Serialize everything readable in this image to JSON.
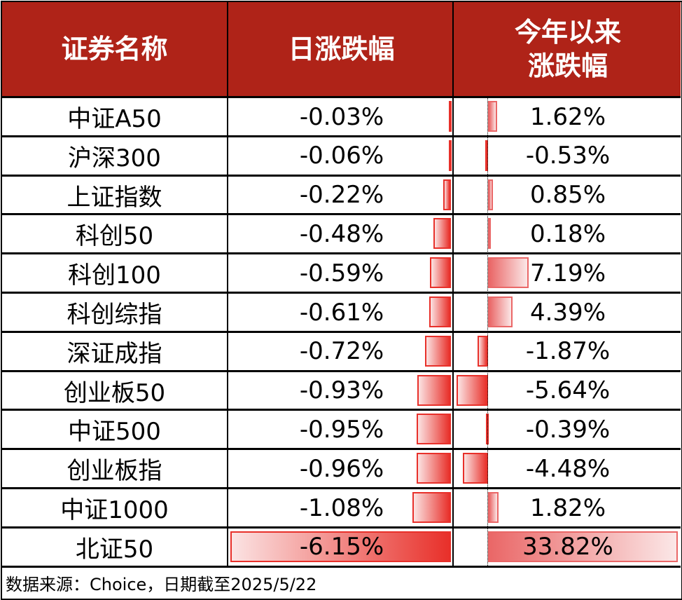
{
  "header": {
    "col1": "证券名称",
    "col2": "日涨跌幅",
    "col3_line1": "今年以来",
    "col3_line2": "涨跌幅"
  },
  "colors": {
    "header_bg": "#AF2318",
    "header_text": "#FFFFFF",
    "negative_bar": "#E8302A",
    "positive_bar": "#EA6767"
  },
  "rows": [
    {
      "name": "中证A50",
      "daily": "-0.03%",
      "ytd": "1.62%"
    },
    {
      "name": "沪深300",
      "daily": "-0.06%",
      "ytd": "-0.53%"
    },
    {
      "name": "上证指数",
      "daily": "-0.22%",
      "ytd": "0.85%"
    },
    {
      "name": "科创50",
      "daily": "-0.48%",
      "ytd": "0.18%"
    },
    {
      "name": "科创100",
      "daily": "-0.59%",
      "ytd": "7.19%"
    },
    {
      "name": "科创综指",
      "daily": "-0.61%",
      "ytd": "4.39%"
    },
    {
      "name": "深证成指",
      "daily": "-0.72%",
      "ytd": "-1.87%"
    },
    {
      "name": "创业板50",
      "daily": "-0.93%",
      "ytd": "-5.64%"
    },
    {
      "name": "中证500",
      "daily": "-0.95%",
      "ytd": "-0.39%"
    },
    {
      "name": "创业板指",
      "daily": "-0.96%",
      "ytd": "-4.48%"
    },
    {
      "name": "中证1000",
      "daily": "-1.08%",
      "ytd": "1.82%"
    },
    {
      "name": "北证50",
      "daily": "-6.15%",
      "ytd": "33.82%"
    }
  ],
  "footer": {
    "source": "数据来源：Choice，日期截至2025/5/22"
  },
  "chart_data": {
    "type": "table",
    "title": "",
    "columns": [
      "证券名称",
      "日涨跌幅",
      "今年以来涨跌幅"
    ],
    "categories": [
      "中证A50",
      "沪深300",
      "上证指数",
      "科创50",
      "科创100",
      "科创综指",
      "深证成指",
      "创业板50",
      "中证500",
      "创业板指",
      "中证1000",
      "北证50"
    ],
    "series": [
      {
        "name": "日涨跌幅",
        "unit": "%",
        "values": [
          -0.03,
          -0.06,
          -0.22,
          -0.48,
          -0.59,
          -0.61,
          -0.72,
          -0.93,
          -0.95,
          -0.96,
          -1.08,
          -6.15
        ]
      },
      {
        "name": "今年以来涨跌幅",
        "unit": "%",
        "values": [
          1.62,
          -0.53,
          0.85,
          0.18,
          7.19,
          4.39,
          -1.87,
          -5.64,
          -0.39,
          -4.48,
          1.82,
          33.82
        ]
      }
    ],
    "note": "Data bars embedded in cells; negatives in bright red extending left from axis, positives in lighter red extending right",
    "source": "数据来源：Choice，日期截至2025/5/22"
  }
}
